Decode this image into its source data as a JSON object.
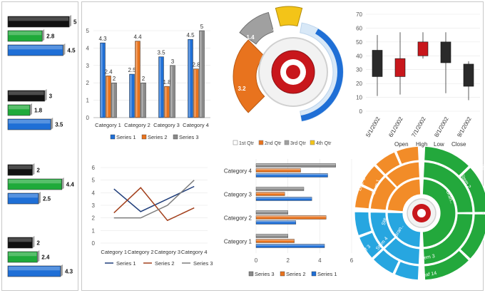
{
  "colors": {
    "blue": "#1f6fd6",
    "orange": "#e8731e",
    "green": "#1faa3a",
    "gray": "#8a8a8a",
    "black": "#111111",
    "red": "#c8171c",
    "yellow": "#f3c418",
    "line_blue": "#1f3d7a",
    "line_brown": "#a3401c",
    "line_gray": "#7d7d7d",
    "sunburst_green": "#23a83c",
    "sunburst_orange": "#f28c28",
    "sunburst_blue": "#27a6e0"
  },
  "hbar_groups": {
    "chart_data": {
      "type": "bar",
      "orientation": "horizontal",
      "series": [
        {
          "values": [
            5,
            3,
            2,
            2
          ],
          "color": "#111111"
        },
        {
          "values": [
            2.8,
            1.8,
            4.4,
            2.4
          ],
          "color": "#1faa3a"
        },
        {
          "values": [
            4.5,
            3.5,
            2.5,
            4.3
          ],
          "color": "#1f6fd6"
        }
      ],
      "xlim": [
        0,
        6
      ]
    }
  },
  "column_chart": {
    "chart_data": {
      "type": "bar",
      "categories": [
        "Category 1",
        "Category 2",
        "Category 3",
        "Category 4"
      ],
      "series": [
        {
          "name": "Series 1",
          "values": [
            4.3,
            2.5,
            3.5,
            4.5
          ]
        },
        {
          "name": "Series 2",
          "values": [
            2.4,
            4.4,
            1.8,
            2.8
          ]
        },
        {
          "name": "Series 3",
          "values": [
            2,
            2,
            3,
            5
          ]
        }
      ],
      "ylim": [
        0,
        5
      ],
      "yticks": [
        "0",
        "1",
        "2",
        "3",
        "4",
        "5"
      ],
      "data_labels": true,
      "legend": "bottom"
    }
  },
  "doughnut_chart": {
    "chart_data": {
      "type": "pie",
      "style": "exploded doughnut",
      "labels": [
        "1st Qtr",
        "2nd Qtr",
        "3rd Qtr",
        "4th Qtr"
      ],
      "slice_labels": [
        "",
        "3.2",
        "1.4",
        "1.2"
      ],
      "legend": "bottom"
    }
  },
  "stock_chart": {
    "chart_data": {
      "type": "candlestick",
      "categories": [
        "5/1/2002",
        "6/1/2002",
        "7/1/2002",
        "8/1/2002",
        "9/1/2002"
      ],
      "open": [
        44,
        25,
        50,
        35,
        18
      ],
      "high": [
        55,
        57,
        57,
        57,
        36
      ],
      "low": [
        11,
        12,
        38,
        13,
        8
      ],
      "close": [
        25,
        38,
        40,
        50,
        34
      ],
      "ylim": [
        0,
        70
      ],
      "yticks": [
        "0",
        "10",
        "20",
        "30",
        "40",
        "50",
        "60",
        "70"
      ],
      "legend_items": [
        "Open",
        "High",
        "Low",
        "Close"
      ]
    }
  },
  "line_chart": {
    "chart_data": {
      "type": "line",
      "categories": [
        "Category 1",
        "Category 2",
        "Category 3",
        "Category 4"
      ],
      "series": [
        {
          "name": "Series 1",
          "values": [
            4.3,
            2.5,
            3.5,
            4.5
          ]
        },
        {
          "name": "Series 2",
          "values": [
            2.4,
            4.4,
            1.8,
            2.8
          ]
        },
        {
          "name": "Series 3",
          "values": [
            2,
            2,
            3,
            5
          ]
        }
      ],
      "ylim": [
        0,
        6
      ],
      "yticks": [
        "0",
        "1",
        "2",
        "3",
        "4",
        "5",
        "6"
      ],
      "legend": "bottom"
    }
  },
  "bar_chart": {
    "chart_data": {
      "type": "bar",
      "orientation": "horizontal",
      "categories": [
        "Category 1",
        "Category 2",
        "Category 3",
        "Category 4"
      ],
      "series": [
        {
          "name": "Series 3",
          "values": [
            2,
            2,
            3,
            5
          ]
        },
        {
          "name": "Series 2",
          "values": [
            2.4,
            4.4,
            1.8,
            2.8
          ]
        },
        {
          "name": "Series 1",
          "values": [
            4.3,
            2.5,
            3.5,
            4.5
          ]
        }
      ],
      "xlim": [
        0,
        6
      ],
      "xticks": [
        "0",
        "2",
        "4",
        "6"
      ],
      "legend": "bottom"
    }
  },
  "sunburst_chart": {
    "chart_data": {
      "type": "pie",
      "style": "sunburst",
      "inner_labels": [
        "Bran..",
        "Bran.."
      ],
      "middle_labels": [
        "Stem 2",
        "Stem 1",
        "Stem 4",
        "Stem 3"
      ],
      "outer_labels": [
        "Leaf 4",
        "Leaf 1",
        "Leaf 3",
        "Leaf 8",
        "Leaf 1",
        "Leaf 11",
        "Leaf 14",
        "Leaf..",
        "Leaf..",
        "Ste.."
      ],
      "values": [
        "Leaf",
        "Stem",
        "Leaf",
        "12",
        "11",
        "4",
        "3",
        "5",
        "6"
      ]
    }
  }
}
